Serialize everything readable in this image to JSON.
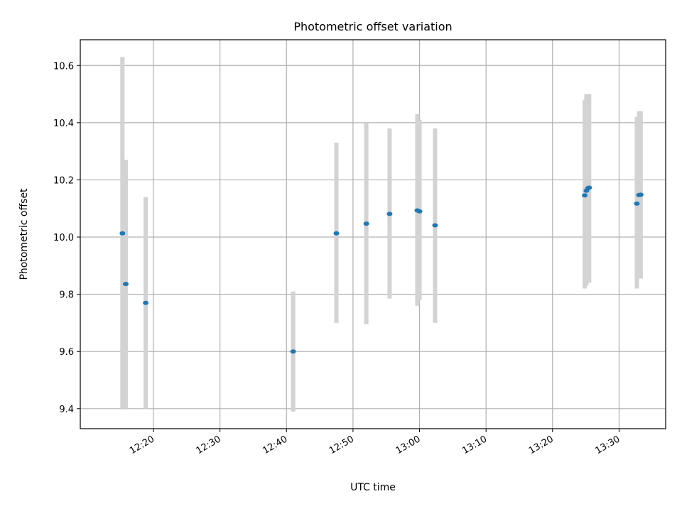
{
  "chart_data": {
    "type": "scatter",
    "title": "Photometric offset variation",
    "xlabel": "UTC time",
    "ylabel": "Photometric offset",
    "xlim": [
      "12:09:00",
      "13:37:00"
    ],
    "ylim": [
      9.33,
      10.69
    ],
    "x_ticks": [
      "12:20",
      "12:30",
      "12:40",
      "12:50",
      "13:00",
      "13:10",
      "13:20",
      "13:30"
    ],
    "y_ticks": [
      "9.4",
      "9.6",
      "9.8",
      "10.0",
      "10.2",
      "10.4",
      "10.6"
    ],
    "grid": true,
    "colors": {
      "points": "#1f77b4",
      "errorbars": "#d3d3d3",
      "grid": "#b0b0b0"
    },
    "points": [
      {
        "x": "12:15:20",
        "y": 10.013,
        "ylo": 9.4,
        "yhi": 10.63
      },
      {
        "x": "12:15:50",
        "y": 9.836,
        "ylo": 9.4,
        "yhi": 10.27
      },
      {
        "x": "12:18:50",
        "y": 9.77,
        "ylo": 9.4,
        "yhi": 10.14
      },
      {
        "x": "12:41:00",
        "y": 9.6,
        "ylo": 9.39,
        "yhi": 9.81
      },
      {
        "x": "12:47:30",
        "y": 10.013,
        "ylo": 9.7,
        "yhi": 10.33
      },
      {
        "x": "12:52:00",
        "y": 10.047,
        "ylo": 9.695,
        "yhi": 10.4
      },
      {
        "x": "12:55:30",
        "y": 10.081,
        "ylo": 9.785,
        "yhi": 10.38
      },
      {
        "x": "12:59:40",
        "y": 10.093,
        "ylo": 9.76,
        "yhi": 10.43
      },
      {
        "x": "13:00:00",
        "y": 10.09,
        "ylo": 9.78,
        "yhi": 10.41
      },
      {
        "x": "13:02:20",
        "y": 10.041,
        "ylo": 9.7,
        "yhi": 10.38
      },
      {
        "x": "13:24:50",
        "y": 10.146,
        "ylo": 9.82,
        "yhi": 10.48
      },
      {
        "x": "13:25:05",
        "y": 10.162,
        "ylo": 9.83,
        "yhi": 10.5
      },
      {
        "x": "13:25:20",
        "y": 10.171,
        "ylo": 9.84,
        "yhi": 10.5
      },
      {
        "x": "13:25:30",
        "y": 10.173,
        "ylo": 9.84,
        "yhi": 10.5
      },
      {
        "x": "13:32:40",
        "y": 10.117,
        "ylo": 9.82,
        "yhi": 10.42
      },
      {
        "x": "13:33:00",
        "y": 10.147,
        "ylo": 9.855,
        "yhi": 10.44
      },
      {
        "x": "13:33:15",
        "y": 10.148,
        "ylo": 9.855,
        "yhi": 10.44
      }
    ]
  }
}
